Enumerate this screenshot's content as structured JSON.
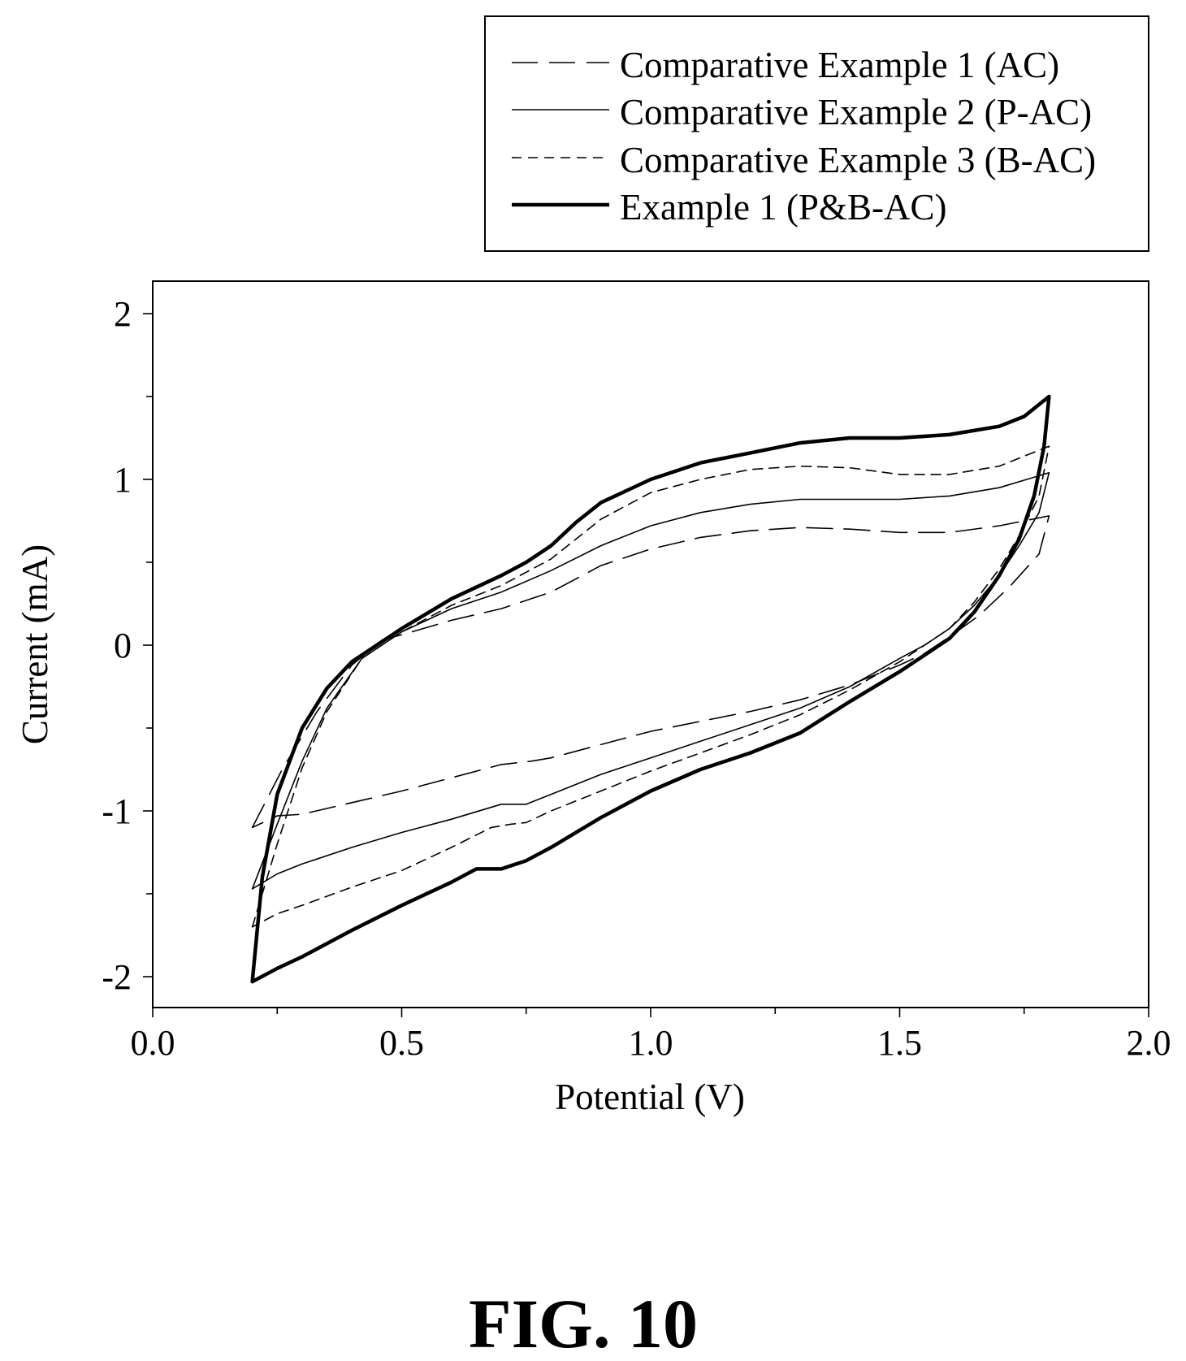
{
  "figure_label": "FIG. 10",
  "chart_data": {
    "type": "line",
    "title": "",
    "xlabel": "Potential (V)",
    "ylabel": "Current (mA)",
    "xlim": [
      0.0,
      2.0
    ],
    "ylim": [
      -2.2,
      2.2
    ],
    "x_ticks": [
      "0.0",
      "0.5",
      "1.0",
      "1.5",
      "2.0"
    ],
    "y_ticks": [
      "2",
      "1",
      "0",
      "-1",
      "-2"
    ],
    "grid": false,
    "legend_position": "top-right, above plot",
    "series": [
      {
        "name": "Comparative Example 1 (AC)",
        "style": "long-dash",
        "color": "#000000",
        "x": [
          0.2,
          0.26,
          0.33,
          0.4,
          0.46,
          0.52,
          0.6,
          0.7,
          0.8,
          0.9,
          1.0,
          1.1,
          1.2,
          1.3,
          1.4,
          1.5,
          1.6,
          1.7,
          1.8,
          1.78,
          1.72,
          1.66,
          1.6,
          1.55,
          1.5,
          1.4,
          1.3,
          1.2,
          1.1,
          1.0,
          0.9,
          0.8,
          0.76,
          0.7,
          0.6,
          0.5,
          0.4,
          0.3,
          0.25,
          0.2
        ],
        "y": [
          -1.1,
          -0.75,
          -0.4,
          -0.12,
          0.03,
          0.08,
          0.15,
          0.22,
          0.32,
          0.48,
          0.58,
          0.65,
          0.69,
          0.71,
          0.7,
          0.68,
          0.68,
          0.72,
          0.78,
          0.55,
          0.35,
          0.18,
          0.05,
          -0.05,
          -0.12,
          -0.24,
          -0.33,
          -0.4,
          -0.46,
          -0.52,
          -0.6,
          -0.68,
          -0.7,
          -0.72,
          -0.8,
          -0.88,
          -0.95,
          -1.02,
          -1.03,
          -1.1
        ]
      },
      {
        "name": "Comparative Example 2 (P-AC)",
        "style": "solid-thin",
        "color": "#000000",
        "x": [
          0.2,
          0.25,
          0.3,
          0.35,
          0.42,
          0.5,
          0.6,
          0.7,
          0.8,
          0.9,
          1.0,
          1.1,
          1.2,
          1.3,
          1.4,
          1.5,
          1.6,
          1.7,
          1.8,
          1.78,
          1.74,
          1.7,
          1.65,
          1.6,
          1.55,
          1.5,
          1.4,
          1.3,
          1.2,
          1.1,
          1.0,
          0.9,
          0.8,
          0.75,
          0.7,
          0.6,
          0.5,
          0.4,
          0.3,
          0.25,
          0.2
        ],
        "y": [
          -1.47,
          -1.08,
          -0.7,
          -0.38,
          -0.08,
          0.08,
          0.22,
          0.32,
          0.45,
          0.6,
          0.72,
          0.8,
          0.85,
          0.88,
          0.88,
          0.88,
          0.9,
          0.95,
          1.04,
          0.8,
          0.6,
          0.42,
          0.24,
          0.1,
          0.0,
          -0.08,
          -0.25,
          -0.38,
          -0.48,
          -0.58,
          -0.68,
          -0.78,
          -0.9,
          -0.96,
          -0.96,
          -1.05,
          -1.13,
          -1.22,
          -1.32,
          -1.38,
          -1.47
        ]
      },
      {
        "name": "Comparative Example 3 (B-AC)",
        "style": "short-dash",
        "color": "#000000",
        "x": [
          0.2,
          0.25,
          0.3,
          0.35,
          0.42,
          0.5,
          0.6,
          0.7,
          0.8,
          0.9,
          1.0,
          1.1,
          1.2,
          1.3,
          1.4,
          1.5,
          1.6,
          1.7,
          1.8,
          1.78,
          1.74,
          1.7,
          1.65,
          1.6,
          1.55,
          1.5,
          1.4,
          1.3,
          1.2,
          1.1,
          1.0,
          0.9,
          0.8,
          0.75,
          0.72,
          0.68,
          0.6,
          0.5,
          0.4,
          0.3,
          0.25,
          0.2
        ],
        "y": [
          -1.7,
          -1.2,
          -0.74,
          -0.4,
          -0.08,
          0.08,
          0.24,
          0.36,
          0.52,
          0.76,
          0.92,
          1.0,
          1.06,
          1.08,
          1.07,
          1.03,
          1.03,
          1.08,
          1.2,
          0.9,
          0.66,
          0.46,
          0.26,
          0.1,
          0.0,
          -0.1,
          -0.27,
          -0.42,
          -0.54,
          -0.65,
          -0.76,
          -0.88,
          -1.0,
          -1.07,
          -1.08,
          -1.1,
          -1.22,
          -1.36,
          -1.46,
          -1.57,
          -1.62,
          -1.7
        ]
      },
      {
        "name": "Example 1 (P&B-AC)",
        "style": "solid-thick",
        "color": "#000000",
        "x": [
          0.2,
          0.22,
          0.25,
          0.3,
          0.35,
          0.4,
          0.46,
          0.5,
          0.6,
          0.7,
          0.75,
          0.8,
          0.85,
          0.9,
          1.0,
          1.1,
          1.2,
          1.3,
          1.4,
          1.5,
          1.6,
          1.7,
          1.75,
          1.8,
          1.79,
          1.77,
          1.74,
          1.7,
          1.65,
          1.6,
          1.55,
          1.5,
          1.4,
          1.3,
          1.2,
          1.1,
          1.0,
          0.9,
          0.8,
          0.75,
          0.7,
          0.65,
          0.6,
          0.5,
          0.4,
          0.3,
          0.25,
          0.2
        ],
        "y": [
          -2.03,
          -1.4,
          -0.9,
          -0.5,
          -0.26,
          -0.1,
          0.02,
          0.1,
          0.28,
          0.42,
          0.5,
          0.6,
          0.74,
          0.86,
          1.0,
          1.1,
          1.16,
          1.22,
          1.25,
          1.25,
          1.27,
          1.32,
          1.38,
          1.5,
          1.2,
          0.9,
          0.64,
          0.42,
          0.2,
          0.04,
          -0.06,
          -0.16,
          -0.34,
          -0.53,
          -0.65,
          -0.75,
          -0.88,
          -1.04,
          -1.22,
          -1.3,
          -1.35,
          -1.35,
          -1.43,
          -1.57,
          -1.72,
          -1.88,
          -1.95,
          -2.03
        ]
      }
    ]
  }
}
